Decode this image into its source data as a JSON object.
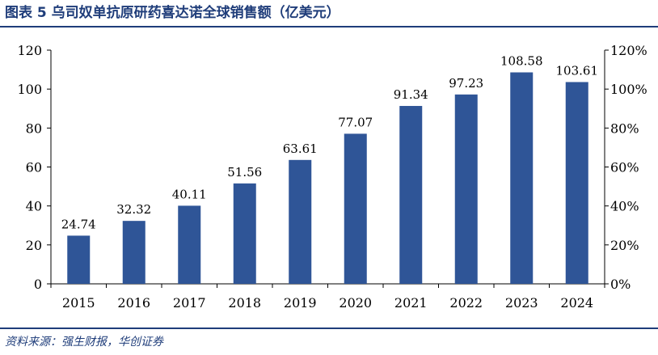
{
  "figure": {
    "title": "图表 5   乌司奴单抗原研药喜达诺全球销售额（亿美元）",
    "source": "资料来源：强生财报，华创证券"
  },
  "chart_data": {
    "type": "bar",
    "categories": [
      "2015",
      "2016",
      "2017",
      "2018",
      "2019",
      "2020",
      "2021",
      "2022",
      "2023",
      "2024"
    ],
    "values": [
      24.74,
      32.32,
      40.11,
      51.56,
      63.61,
      77.07,
      91.34,
      97.23,
      108.58,
      103.61
    ],
    "value_labels": [
      "24.74",
      "32.32",
      "40.11",
      "51.56",
      "63.61",
      "77.07",
      "91.34",
      "97.23",
      "108.58",
      "103.61"
    ],
    "ylim": [
      0,
      120
    ],
    "y_ticks": [
      "0",
      "20",
      "40",
      "60",
      "80",
      "100",
      "120"
    ],
    "y2lim": [
      0,
      1.2
    ],
    "y2_ticks": [
      "0%",
      "20%",
      "40%",
      "60%",
      "80%",
      "100%",
      "120%"
    ],
    "bar_color": "#2f5597",
    "grid": false,
    "legend": "none"
  }
}
